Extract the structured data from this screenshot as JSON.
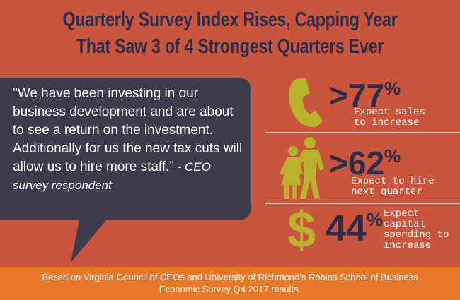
{
  "title": [
    "Quarterly Survey Index Rises, Capping Year",
    "That Saw 3 of 4 Strongest Quarters Ever"
  ],
  "quote": {
    "text": "\"We have been investing in our business development and are about to see a return on the investment. Additionally for us the new tax cuts will allow us to hire more staff.”",
    "attribution": "- CEO survey respondent"
  },
  "stats": [
    {
      "prefix": ">",
      "value": 77,
      "unit": "%",
      "label": [
        "Expect sales",
        "to increase"
      ]
    },
    {
      "prefix": ">",
      "value": 62,
      "unit": "%",
      "label": [
        "Expect to hire",
        "next quarter"
      ]
    },
    {
      "icon_text": "$",
      "value": 44,
      "unit": "%",
      "label": [
        "Expect capital",
        "spending to",
        "increase"
      ]
    }
  ],
  "footer": [
    "Based on Virginia Council of CEOs and University of Richmond’s Robins School of Business",
    "Economic Survey Q4 2017 results."
  ]
}
